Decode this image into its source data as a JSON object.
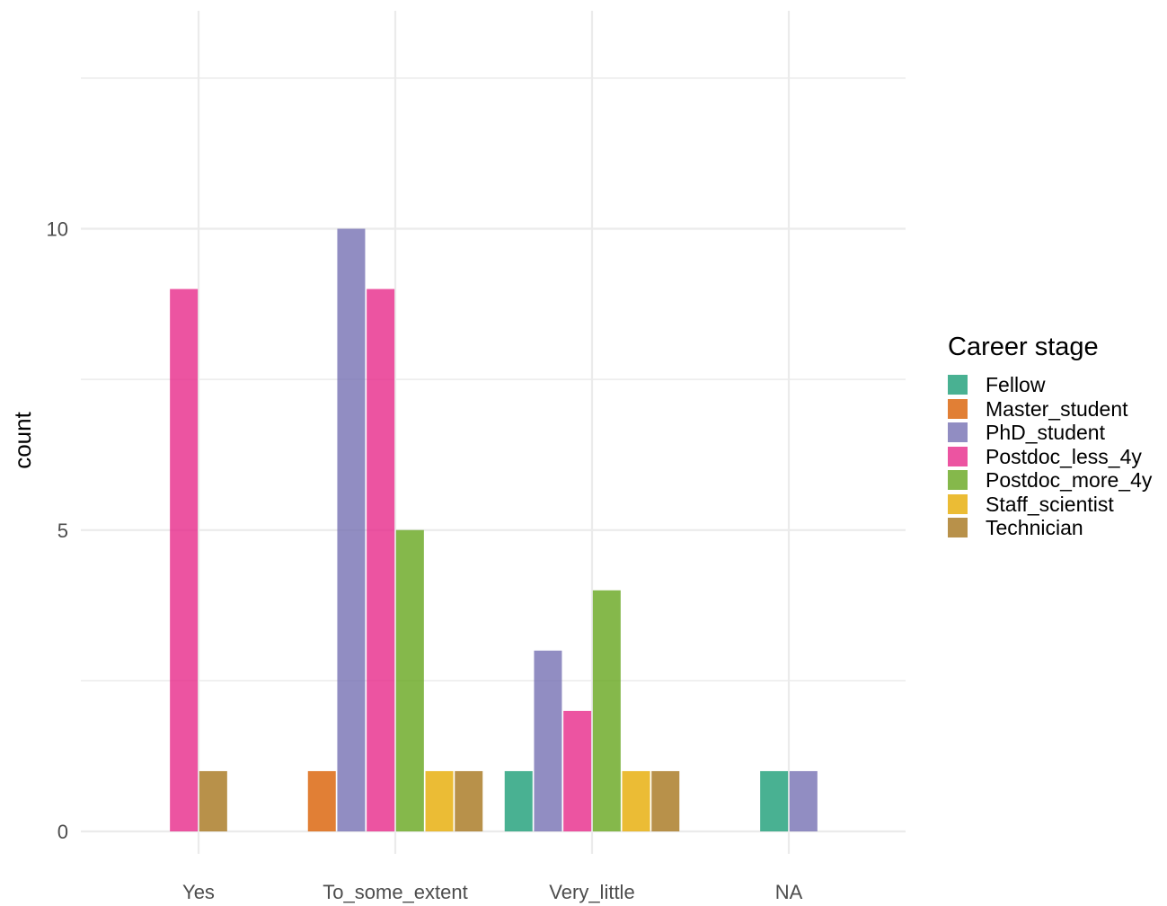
{
  "chart_data": {
    "type": "bar",
    "categories": [
      "Yes",
      "To_some_extent",
      "Very_little",
      "NA"
    ],
    "series": [
      {
        "name": "Fellow",
        "color": "#1B9E77",
        "values": [
          0,
          0,
          1,
          1
        ]
      },
      {
        "name": "Master_student",
        "color": "#D95F02",
        "values": [
          0,
          1,
          0,
          0
        ]
      },
      {
        "name": "PhD_student",
        "color": "#7570B3",
        "values": [
          0,
          10,
          3,
          1
        ]
      },
      {
        "name": "Postdoc_less_4y",
        "color": "#E7298A",
        "values": [
          9,
          9,
          2,
          0
        ]
      },
      {
        "name": "Postdoc_more_4y",
        "color": "#66A61E",
        "values": [
          0,
          5,
          4,
          0
        ]
      },
      {
        "name": "Staff_scientist",
        "color": "#E6AB02",
        "values": [
          0,
          1,
          1,
          0
        ]
      },
      {
        "name": "Technician",
        "color": "#A6761D",
        "values": [
          1,
          1,
          1,
          0
        ]
      }
    ],
    "xlabel": "",
    "ylabel": "count",
    "ylim": [
      0,
      12.5
    ],
    "yticks": [
      0,
      5,
      10
    ],
    "ytick_labels": [
      "0",
      "5",
      "10"
    ],
    "grid": true,
    "bar_opacity": 0.8,
    "legend_title": "Career stage",
    "legend_position": "right"
  }
}
